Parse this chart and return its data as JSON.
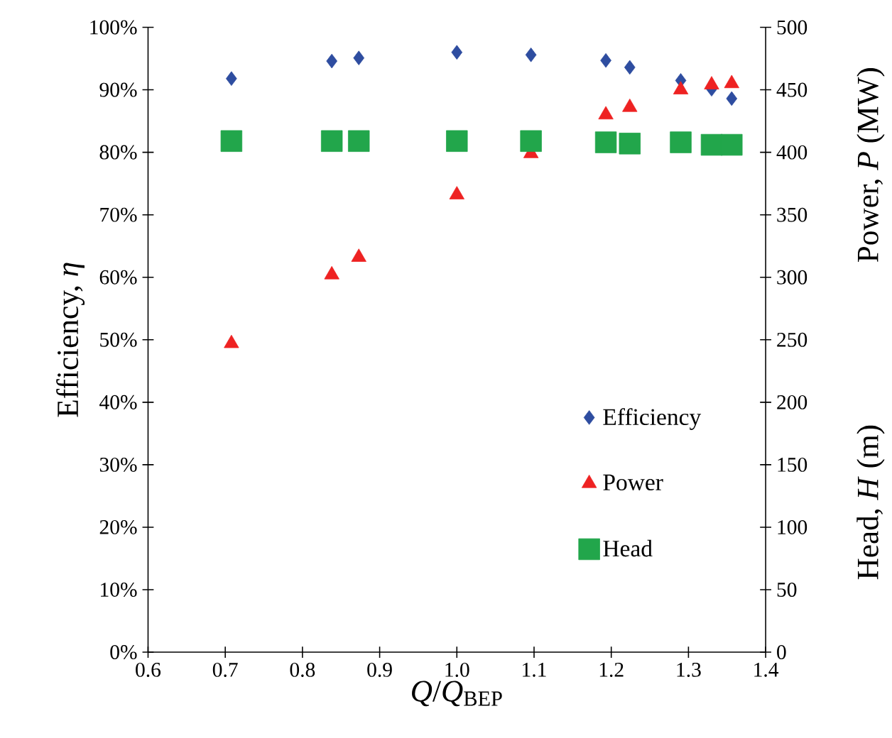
{
  "chart_data": {
    "type": "scatter",
    "xlabel": "*Q*/*Q*$_{BEP}$",
    "ylabel": "Efficiency, *η*",
    "y2label": "Power, *P* (MW)",
    "annotations": [
      "Head, *H* (m)"
    ],
    "x": [
      0.708,
      0.838,
      0.873,
      1.0,
      1.096,
      1.193,
      1.224,
      1.29,
      1.33,
      1.356
    ],
    "xlim": [
      0.6,
      1.4
    ],
    "xticks": [
      0.6,
      0.7,
      0.8,
      0.9,
      {
        "value": 1,
        "label": "1.0"
      },
      1.1,
      1.2,
      1.3,
      1.4
    ],
    "ylim": [
      0,
      100
    ],
    "yticks": [
      {
        "value": 0,
        "label": "0%"
      },
      {
        "value": 10,
        "label": "10%"
      },
      {
        "value": 20,
        "label": "20%"
      },
      {
        "value": 30,
        "label": "30%"
      },
      {
        "value": 40,
        "label": "40%"
      },
      {
        "value": 50,
        "label": "50%"
      },
      {
        "value": 60,
        "label": "60%"
      },
      {
        "value": 70,
        "label": "70%"
      },
      {
        "value": 80,
        "label": "80%"
      },
      {
        "value": 90,
        "label": "90%"
      },
      {
        "value": 100,
        "label": "100%"
      }
    ],
    "y2lim": [
      0,
      500
    ],
    "y2ticks": [
      0,
      50,
      100,
      150,
      200,
      250,
      300,
      350,
      400,
      450,
      500
    ],
    "legend": "bottom right",
    "series": [
      {
        "name": "Efficiency",
        "color": "#2e4da0",
        "marker": "diamond",
        "values": [
          91.8,
          94.6,
          95.1,
          96.0,
          95.6,
          94.7,
          93.6,
          91.5,
          90.1,
          88.6
        ]
      },
      {
        "name": "Power",
        "color": "#ee2222",
        "marker": "triangle",
        "axis": "y2",
        "values": [
          247,
          302,
          316,
          366,
          399,
          430,
          436,
          450,
          454,
          455
        ]
      },
      {
        "name": "Head",
        "color": "#22a64b",
        "marker": "square",
        "axis": "y2",
        "values": [
          409,
          409,
          409,
          409,
          409,
          408,
          407,
          408,
          406,
          406
        ]
      }
    ]
  }
}
